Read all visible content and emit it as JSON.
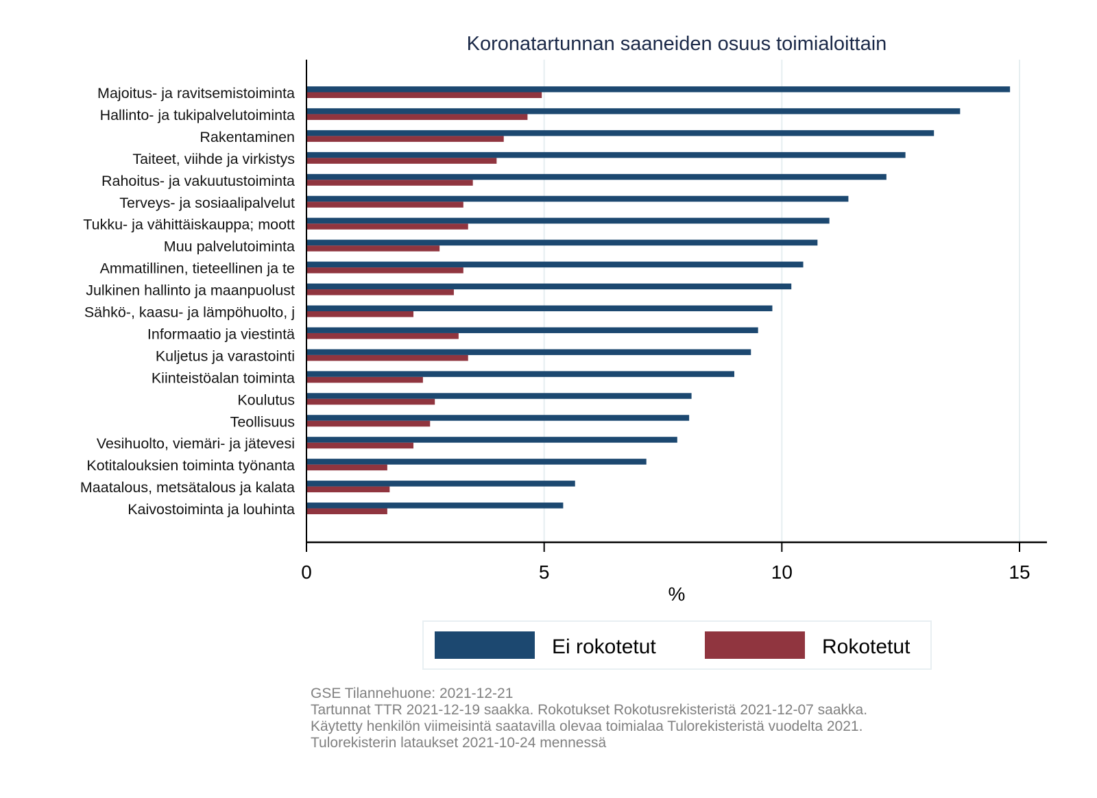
{
  "chart_data": {
    "type": "bar",
    "orientation": "horizontal",
    "title": "Koronatartunnan saaneiden osuus toimialoittain",
    "xlabel": "%",
    "ylabel": "",
    "xlim": [
      0,
      15.5
    ],
    "xticks": [
      0,
      5,
      10,
      15
    ],
    "xtick_labels": [
      "0",
      "5",
      "10",
      "15"
    ],
    "grid": true,
    "legend_position": "bottom",
    "categories": [
      "Majoitus- ja ravitsemistoiminta",
      "Hallinto- ja tukipalvelutoiminta",
      "Rakentaminen",
      "Taiteet, viihde ja virkistys",
      "Rahoitus- ja vakuutustoiminta",
      "Terveys- ja sosiaalipalvelut",
      "Tukku- ja vähittäiskauppa; moott",
      "Muu palvelutoiminta",
      "Ammatillinen, tieteellinen ja te",
      "Julkinen hallinto ja maanpuolust",
      "Sähkö-, kaasu- ja lämpöhuolto, j",
      "Informaatio ja viestintä",
      "Kuljetus ja varastointi",
      "Kiinteistöalan toiminta",
      "Koulutus",
      "Teollisuus",
      "Vesihuolto, viemäri- ja jätevesi",
      "Kotitalouksien toiminta työnanta",
      "Maatalous, metsätalous ja kalata",
      "Kaivostoiminta ja louhinta"
    ],
    "series": [
      {
        "name": "Ei rokotetut",
        "color": "#1c4870",
        "values": [
          14.8,
          13.75,
          13.2,
          12.6,
          12.2,
          11.4,
          11.0,
          10.75,
          10.45,
          10.2,
          9.8,
          9.5,
          9.35,
          9.0,
          8.1,
          8.05,
          7.8,
          7.15,
          5.65,
          5.4
        ]
      },
      {
        "name": "Rokotetut",
        "color": "#90353f",
        "values": [
          4.95,
          4.65,
          4.15,
          4.0,
          3.5,
          3.3,
          3.4,
          2.8,
          3.3,
          3.1,
          2.25,
          3.2,
          3.4,
          2.45,
          2.7,
          2.6,
          2.25,
          1.7,
          1.75,
          1.7
        ]
      }
    ]
  },
  "notes": [
    "GSE Tilannehuone: 2021-12-21",
    "Tartunnat TTR 2021-12-19 saakka. Rokotukset Rokotusrekisteristä 2021-12-07 saakka.",
    "Käytetty henkilön viimeisintä saatavilla olevaa toimialaa Tulorekisteristä vuodelta 2021.",
    "Tulorekisterin lataukset 2021-10-24 mennessä"
  ]
}
